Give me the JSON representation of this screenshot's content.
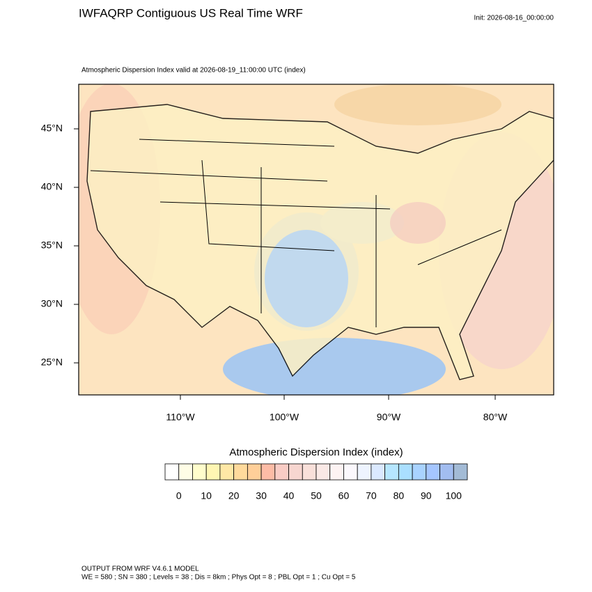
{
  "header": {
    "title": "IWFAQRP Contiguous US Real Time WRF",
    "init": "Init: 2026-08-16_00:00:00"
  },
  "map": {
    "subtitle": "Atmospheric Dispersion Index valid at 2026-08-19_11:00:00 UTC   (index)",
    "lat_labels": [
      "45°N",
      "40°N",
      "35°N",
      "30°N",
      "25°N"
    ],
    "lon_labels": [
      "110°W",
      "100°W",
      "90°W",
      "80°W"
    ]
  },
  "colorbar": {
    "title": "Atmospheric Dispersion Index  (index)",
    "labels": [
      0,
      10,
      20,
      30,
      40,
      50,
      60,
      70,
      80,
      90,
      100
    ],
    "colors": [
      "#ffffff",
      "#fffde6",
      "#fffdcc",
      "#fff6b3",
      "#ffe8a6",
      "#ffda9c",
      "#ffcf99",
      "#fdbca6",
      "#f9ccc5",
      "#f7d6d0",
      "#f9e0da",
      "#fae9e6",
      "#fdf3f3",
      "#fbf8fd",
      "#eef4ff",
      "#dbe9ff",
      "#b6e6ff",
      "#aadfff",
      "#a9d3ff",
      "#a5c6ff",
      "#a2bdf0",
      "#a3bbd6"
    ]
  },
  "footer": {
    "lines": [
      "OUTPUT FROM WRF V4.6.1 MODEL",
      "WE = 580 ; SN = 380 ; Levels = 38 ; Dis = 8km ; Phys Opt = 8 ; PBL Opt = 1 ; Cu Opt = 5"
    ]
  }
}
